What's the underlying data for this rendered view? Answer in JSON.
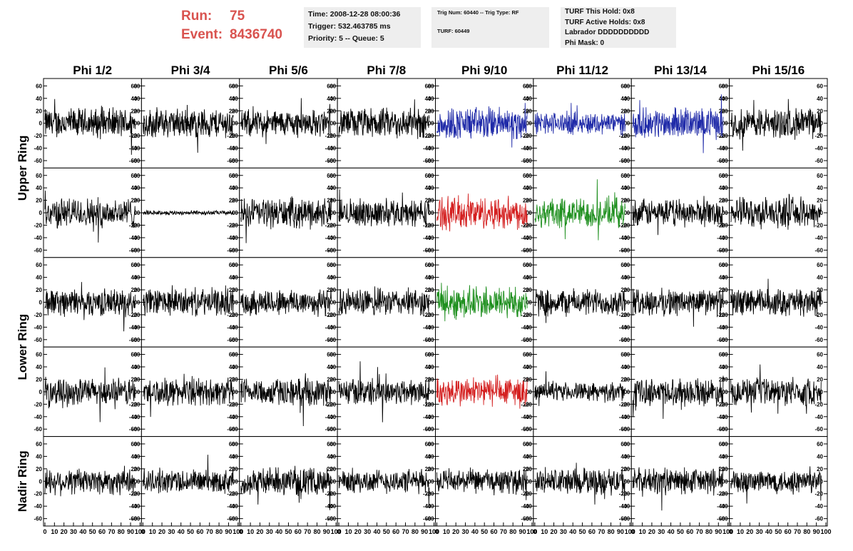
{
  "header": {
    "run_label": "Run:",
    "run_value": "75",
    "event_label": "Event:",
    "event_value": "8436740",
    "time": "Time: 2008-12-28 08:00:36",
    "trigger": "Trigger: 532.463785 ms",
    "priority": "Priority: 5 -- Queue: 5",
    "trig_num": "Trig Num: 60440 -- Trig Type: RF",
    "turf": "TURF: 60449",
    "turf_this_hold": "TURF This Hold: 0x8",
    "turf_active_holds": "TURF Active Holds: 0x8",
    "labrador": "Labrador DDDDDDDDDD",
    "phi_mask": "Phi Mask: 0"
  },
  "colors": {
    "black": "#000000",
    "blue": "#1f2aa8",
    "red": "#d42020",
    "green": "#1e8f1e",
    "header_red": "#d9534f",
    "panel_bg": "#eeeeee"
  },
  "chart_data": {
    "type": "line",
    "columns": [
      "Phi 1/2",
      "Phi 3/4",
      "Phi 5/6",
      "Phi 7/8",
      "Phi 9/10",
      "Phi 11/12",
      "Phi 13/14",
      "Phi 15/16"
    ],
    "row_labels": [
      "Upper Ring",
      "Lower Ring",
      "Nadir Ring"
    ],
    "row_label_spans": [
      [
        0,
        1
      ],
      [
        2,
        3
      ],
      [
        4,
        4
      ]
    ],
    "xlim": [
      0,
      100
    ],
    "ylim": [
      -65,
      65
    ],
    "y_ticks": [
      -60,
      -40,
      -20,
      0,
      20,
      40,
      60
    ],
    "x_ticks": [
      0,
      10,
      20,
      30,
      40,
      50,
      60,
      70,
      80,
      90,
      100
    ],
    "x_tick_labels": [
      "0",
      "10",
      "20",
      "30",
      "40",
      "50",
      "60",
      "70",
      "80",
      "90",
      "100"
    ],
    "y_tick_labels": [
      "-60",
      "-40",
      "-20",
      "0",
      "20",
      "40",
      "60"
    ],
    "waveform_colors": [
      [
        "black",
        "black",
        "black",
        "black",
        "blue",
        "blue",
        "blue",
        "black"
      ],
      [
        "black",
        "black",
        "black",
        "black",
        "red",
        "green",
        "black",
        "black"
      ],
      [
        "black",
        "black",
        "black",
        "black",
        "green",
        "black",
        "black",
        "black"
      ],
      [
        "black",
        "black",
        "black",
        "black",
        "red",
        "black",
        "black",
        "black"
      ],
      [
        "black",
        "black",
        "black",
        "black",
        "black",
        "black",
        "black",
        "black"
      ]
    ],
    "waveform_amplitude": [
      [
        20,
        20,
        18,
        20,
        22,
        15,
        20,
        20
      ],
      [
        20,
        3,
        20,
        18,
        22,
        20,
        18,
        20
      ],
      [
        18,
        18,
        18,
        18,
        22,
        18,
        18,
        18
      ],
      [
        18,
        18,
        18,
        18,
        20,
        12,
        18,
        18
      ],
      [
        18,
        16,
        18,
        16,
        16,
        18,
        18,
        16
      ]
    ],
    "samples_per_trace": 260,
    "samples_x_range": [
      0,
      95
    ]
  }
}
